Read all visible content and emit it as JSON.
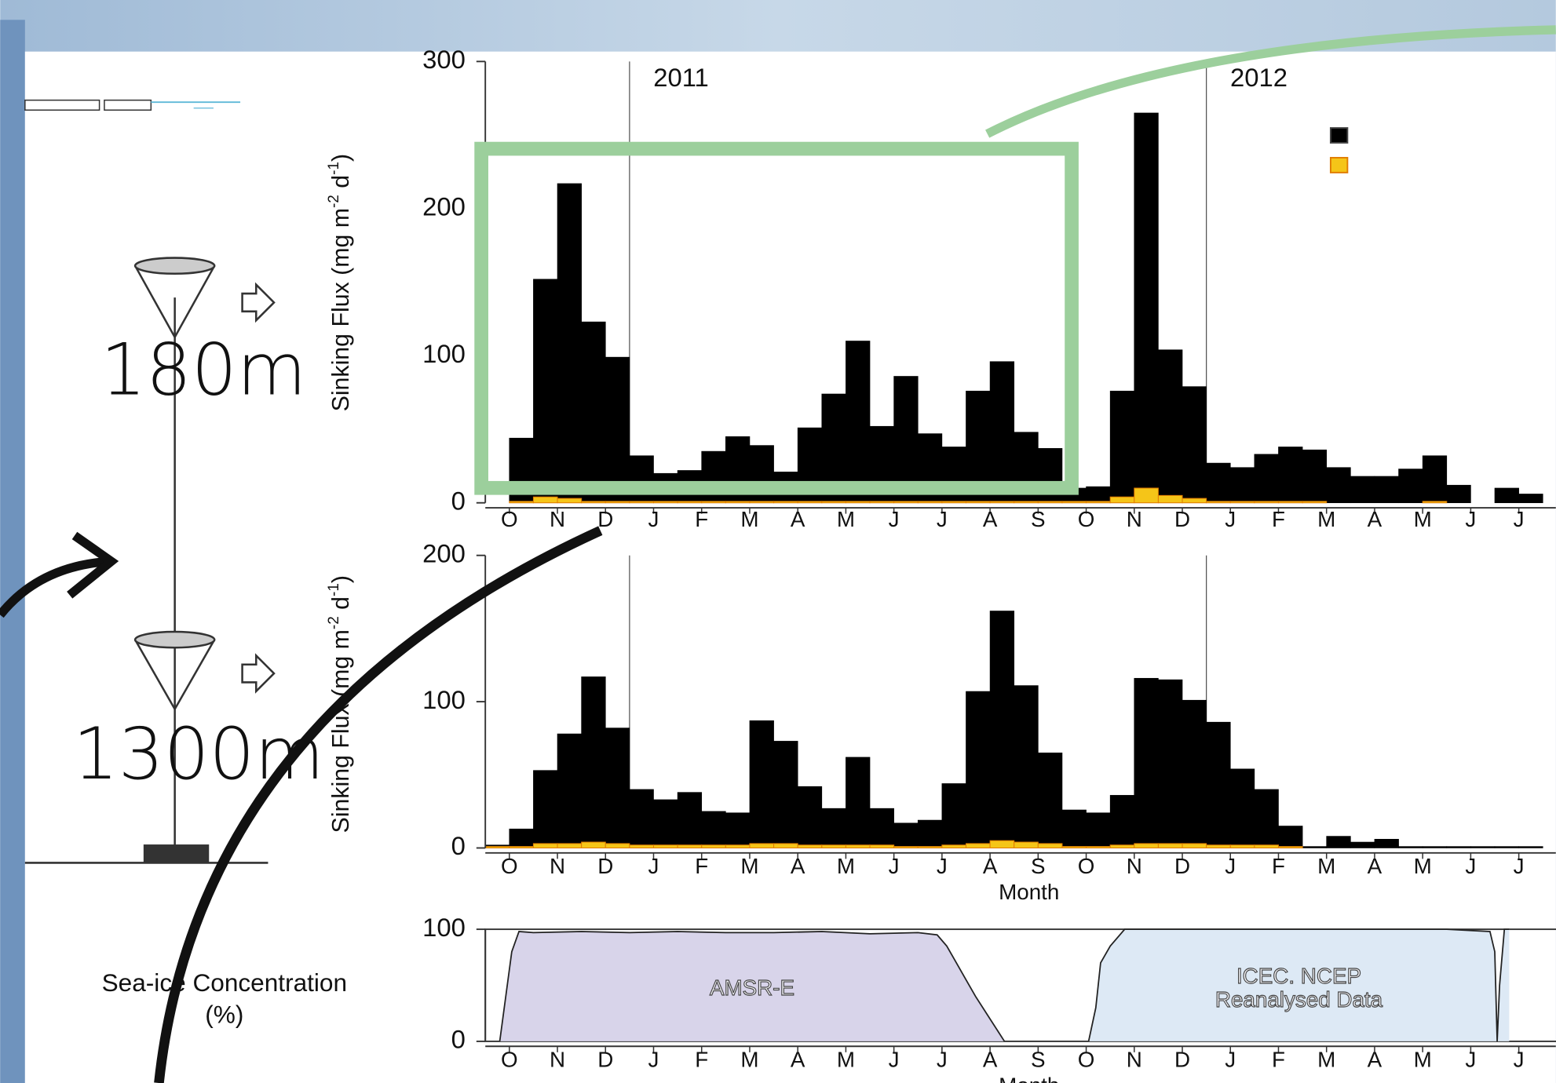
{
  "diagram": {
    "depth_labels": [
      "180m",
      "1300m"
    ]
  },
  "chart_data": [
    {
      "type": "bar",
      "ylabel_parts": [
        "Sinking Flux (mg m",
        "-2",
        " d",
        "-1",
        ")"
      ],
      "annotations": [
        {
          "text": "2011",
          "x": 3
        },
        {
          "text": "2012",
          "x": 15
        }
      ],
      "legend": "upper right",
      "x": [
        0.5,
        1,
        1.5,
        2,
        2.5,
        3,
        3.5,
        4,
        4.5,
        5,
        5.5,
        6,
        6.5,
        7,
        7.5,
        8,
        8.5,
        9,
        9.5,
        10,
        10.5,
        11,
        11.5,
        12,
        12.5,
        13,
        13.5,
        14,
        14.5,
        15,
        15.5,
        16,
        16.5,
        17,
        17.5,
        18,
        18.5,
        19,
        19.5,
        20,
        20.5,
        21,
        21.5
      ],
      "series": [
        {
          "color": "#000000",
          "values": [
            44,
            152,
            217,
            123,
            99,
            32,
            20,
            22,
            35,
            45,
            39,
            21,
            51,
            74,
            110,
            52,
            86,
            47,
            38,
            76,
            96,
            48,
            37,
            10,
            11,
            76,
            265,
            104,
            79,
            27,
            24,
            33,
            38,
            36,
            24,
            18,
            18,
            23,
            32,
            12,
            null,
            10,
            6
          ]
        },
        {
          "color": "#f5c518",
          "values": [
            1,
            4,
            3,
            1,
            1,
            1,
            1,
            1,
            1,
            1,
            1,
            1,
            1,
            1,
            1,
            1,
            1,
            1,
            1,
            1,
            1,
            1,
            1,
            1,
            1,
            4,
            10,
            5,
            3,
            1,
            1,
            1,
            1,
            1,
            0,
            0,
            0,
            0,
            1,
            0,
            null,
            0,
            0
          ]
        }
      ],
      "xlim": [
        0,
        22.27
      ],
      "ylim": [
        0,
        300
      ],
      "yticks": [
        0,
        100,
        200,
        300
      ],
      "xticks": [
        {
          "value": 0.5,
          "label": "O"
        },
        {
          "value": 1.5,
          "label": "N"
        },
        {
          "value": 2.5,
          "label": "D"
        },
        {
          "value": 3.5,
          "label": "J"
        },
        {
          "value": 4.5,
          "label": "F"
        },
        {
          "value": 5.5,
          "label": "M"
        },
        {
          "value": 6.5,
          "label": "A"
        },
        {
          "value": 7.5,
          "label": "M"
        },
        {
          "value": 8.5,
          "label": "J"
        },
        {
          "value": 9.5,
          "label": "J"
        },
        {
          "value": 10.5,
          "label": "A"
        },
        {
          "value": 11.5,
          "label": "S"
        },
        {
          "value": 12.5,
          "label": "O"
        },
        {
          "value": 13.5,
          "label": "N"
        },
        {
          "value": 14.5,
          "label": "D"
        },
        {
          "value": 15.5,
          "label": "J"
        },
        {
          "value": 16.5,
          "label": "F"
        },
        {
          "value": 17.5,
          "label": "M"
        },
        {
          "value": 18.5,
          "label": "A"
        },
        {
          "value": 19.5,
          "label": "M"
        },
        {
          "value": 20.5,
          "label": "J"
        },
        {
          "value": 21.5,
          "label": "J"
        }
      ]
    },
    {
      "type": "bar",
      "ylabel_parts": [
        "Sinking Flux (mg m",
        "-2",
        " d",
        "-1",
        ")"
      ],
      "xlabel": "Month",
      "vlines": [
        3,
        15
      ],
      "x": [
        0,
        0.5,
        1,
        1.5,
        2,
        2.5,
        3,
        3.5,
        4,
        4.5,
        5,
        5.5,
        6,
        6.5,
        7,
        7.5,
        8,
        8.5,
        9,
        9.5,
        10,
        10.5,
        11,
        11.5,
        12,
        12.5,
        13,
        13.5,
        14,
        14.5,
        15,
        15.5,
        16,
        16.5,
        17,
        17.5,
        18,
        18.5,
        19,
        19.5,
        20,
        20.5,
        21,
        21.5
      ],
      "series": [
        {
          "color": "#000000",
          "values": [
            2,
            13,
            53,
            78,
            117,
            82,
            40,
            33,
            38,
            25,
            24,
            87,
            73,
            42,
            27,
            62,
            27,
            17,
            19,
            44,
            107,
            162,
            111,
            65,
            26,
            24,
            36,
            116,
            115,
            101,
            86,
            54,
            40,
            15,
            1,
            8,
            4,
            6,
            1,
            1,
            1,
            1,
            1,
            1
          ]
        },
        {
          "color": "#f5c518",
          "values": [
            1,
            1,
            3,
            3,
            4,
            3,
            2,
            2,
            2,
            2,
            2,
            3,
            3,
            2,
            2,
            2,
            2,
            1,
            1,
            2,
            3,
            5,
            4,
            3,
            1,
            1,
            2,
            3,
            3,
            3,
            2,
            2,
            2,
            1,
            0,
            0,
            0,
            0,
            0,
            0,
            0,
            0,
            0,
            0
          ]
        }
      ],
      "xlim": [
        0,
        22.27
      ],
      "ylim": [
        0,
        200
      ],
      "yticks": [
        0,
        100,
        200
      ],
      "xticks": [
        {
          "value": 0.5,
          "label": "O"
        },
        {
          "value": 1.5,
          "label": "N"
        },
        {
          "value": 2.5,
          "label": "D"
        },
        {
          "value": 3.5,
          "label": "J"
        },
        {
          "value": 4.5,
          "label": "F"
        },
        {
          "value": 5.5,
          "label": "M"
        },
        {
          "value": 6.5,
          "label": "A"
        },
        {
          "value": 7.5,
          "label": "M"
        },
        {
          "value": 8.5,
          "label": "J"
        },
        {
          "value": 9.5,
          "label": "J"
        },
        {
          "value": 10.5,
          "label": "A"
        },
        {
          "value": 11.5,
          "label": "S"
        },
        {
          "value": 12.5,
          "label": "O"
        },
        {
          "value": 13.5,
          "label": "N"
        },
        {
          "value": 14.5,
          "label": "D"
        },
        {
          "value": 15.5,
          "label": "J"
        },
        {
          "value": 16.5,
          "label": "F"
        },
        {
          "value": 17.5,
          "label": "M"
        },
        {
          "value": 18.5,
          "label": "A"
        },
        {
          "value": 19.5,
          "label": "M"
        },
        {
          "value": 20.5,
          "label": "J"
        },
        {
          "value": 21.5,
          "label": "J"
        }
      ]
    },
    {
      "type": "area",
      "ylabel_lines": [
        "Sea-ice Concentration",
        "(%)"
      ],
      "xlabel": "Month",
      "frame": true,
      "series": [
        {
          "color": "#d8d4ea",
          "label": [
            "AMSR-E"
          ],
          "x": [
            0.3,
            0.55,
            0.7,
            1,
            2,
            3,
            4,
            5,
            6,
            7,
            8,
            9,
            9.4,
            9.6,
            9.8,
            10,
            10.2,
            10.5,
            10.8
          ],
          "values": [
            0,
            80,
            98,
            97,
            98,
            97,
            98,
            97,
            97,
            98,
            96,
            97,
            95,
            85,
            70,
            55,
            40,
            20,
            0
          ]
        },
        {
          "color": "#dde9f5",
          "label": [
            "ICEC. NCEP",
            "Reanalysed Data"
          ],
          "x": [
            12.55,
            12.7,
            12.8,
            13,
            13.3,
            14,
            15,
            16,
            17,
            18,
            19,
            20,
            20.9,
            21,
            21.05,
            21.1,
            21.2,
            21.3
          ],
          "values": [
            0,
            30,
            70,
            85,
            100,
            100,
            100,
            100,
            100,
            100,
            100,
            100,
            98,
            80,
            0,
            50,
            100,
            100
          ]
        }
      ],
      "xlim": [
        0,
        22.27
      ],
      "ylim": [
        0,
        100
      ],
      "yticks": [
        0,
        100
      ],
      "xticks": [
        {
          "value": 0.5,
          "label": "O"
        },
        {
          "value": 1.5,
          "label": "N"
        },
        {
          "value": 2.5,
          "label": "D"
        },
        {
          "value": 3.5,
          "label": "J"
        },
        {
          "value": 4.5,
          "label": "F"
        },
        {
          "value": 5.5,
          "label": "M"
        },
        {
          "value": 6.5,
          "label": "A"
        },
        {
          "value": 7.5,
          "label": "M"
        },
        {
          "value": 8.5,
          "label": "J"
        },
        {
          "value": 9.5,
          "label": "J"
        },
        {
          "value": 10.5,
          "label": "A"
        },
        {
          "value": 11.5,
          "label": "S"
        },
        {
          "value": 12.5,
          "label": "O"
        },
        {
          "value": 13.5,
          "label": "N"
        },
        {
          "value": 14.5,
          "label": "D"
        },
        {
          "value": 15.5,
          "label": "J"
        },
        {
          "value": 16.5,
          "label": "F"
        },
        {
          "value": 17.5,
          "label": "M"
        },
        {
          "value": 18.5,
          "label": "A"
        },
        {
          "value": 19.5,
          "label": "M"
        },
        {
          "value": 20.5,
          "label": "J"
        },
        {
          "value": 21.5,
          "label": "J"
        }
      ]
    }
  ]
}
